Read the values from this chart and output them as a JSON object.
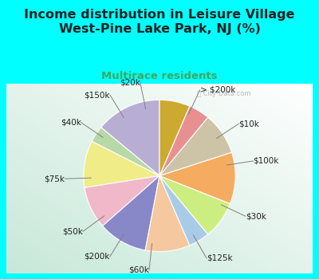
{
  "title": "Income distribution in Leisure Village\nWest-Pine Lake Park, NJ (%)",
  "subtitle": "Multirace residents",
  "background_color": "#00FFFF",
  "labels": [
    "> $200k",
    "$10k",
    "$100k",
    "$30k",
    "$125k",
    "$60k",
    "$200k",
    "$50k",
    "$75k",
    "$40k",
    "$150k",
    "$20k"
  ],
  "values": [
    14.0,
    3.5,
    10.0,
    9.0,
    10.5,
    9.5,
    4.5,
    8.0,
    11.0,
    9.0,
    4.5,
    6.5
  ],
  "colors": [
    "#b8aed4",
    "#b8d8a8",
    "#f0ec88",
    "#f0b8c8",
    "#8888c8",
    "#f5c8a0",
    "#a8cce8",
    "#ccee80",
    "#f5ac60",
    "#cdc4a8",
    "#e89090",
    "#ccaa30"
  ],
  "title_color": "#222222",
  "subtitle_color": "#3aaa60",
  "title_fontsize": 11.5,
  "subtitle_fontsize": 9.5,
  "label_fontsize": 7.5,
  "startangle": 90
}
